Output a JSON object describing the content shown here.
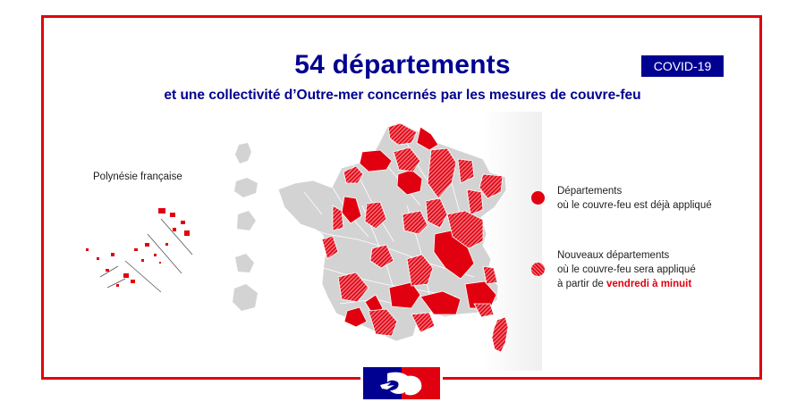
{
  "header": {
    "title": "54 départements",
    "subtitle": "et une collectivité d’Outre-mer concernés par les mesures de couvre-feu",
    "badge": "COVID-19"
  },
  "map": {
    "overseas_label": "Polynésie française",
    "colors": {
      "applied": "#e1000f",
      "not_concerned": "#d3d3d3",
      "accent_blue": "#000091",
      "frame": "#e1000f"
    }
  },
  "legend": [
    {
      "marker": "solid",
      "lines": [
        "Départements",
        "où le couvre-feu est déjà appliqué"
      ]
    },
    {
      "marker": "hatched",
      "line1": "Nouveaux départements",
      "line2": "où le couvre-feu sera appliqué",
      "line3_prefix": "à partir de ",
      "line3_highlight": "vendredi à minuit"
    }
  ],
  "footer": {
    "logo_icon": "marianne-logo-icon"
  }
}
